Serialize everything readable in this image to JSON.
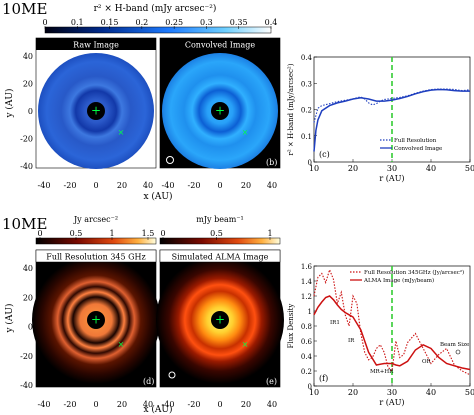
{
  "row1": {
    "system_label": "10ME",
    "colorbar_title": "r² × H-band (mJy arcsec⁻²)",
    "colorbar_ticks": [
      "0",
      "0.1",
      "0.15",
      "0.2",
      "0.25",
      "0.3",
      "0.35",
      "0.4"
    ],
    "panel_a_title": "Raw Image",
    "panel_b_title": "Convolved Image",
    "panel_a_tag": "(a)",
    "panel_b_tag": "(b)",
    "panel_c_tag": "(c)",
    "xlabel": "x (AU)",
    "ylabel": "y (AU)",
    "x_ticks": [
      "-40",
      "-20",
      "0",
      "20",
      "40"
    ],
    "y_ticks": [
      "40",
      "20",
      "0",
      "-20",
      "-40"
    ]
  },
  "row2": {
    "system_label": "10ME",
    "colorbar1_title": "Jy arcsec⁻²",
    "colorbar1_ticks": [
      "0",
      "0.5",
      "1",
      "1.5"
    ],
    "colorbar2_title": "mJy beam⁻¹",
    "colorbar2_ticks": [
      "0",
      "0.5",
      "1"
    ],
    "panel_d_title": "Full Resolution 345 GHz",
    "panel_e_title": "Simulated ALMA Image",
    "panel_d_tag": "(d)",
    "panel_e_tag": "(e)",
    "panel_f_tag": "(f)",
    "xlabel": "x (AU)",
    "ylabel": "y (AU)",
    "x_ticks": [
      "-40",
      "-20",
      "0",
      "20",
      "40"
    ],
    "y_ticks": [
      "40",
      "20",
      "0",
      "-20",
      "-40"
    ]
  },
  "chart_data": [
    {
      "type": "line",
      "panel": "c",
      "xlabel": "r (AU)",
      "ylabel": "r² × H-band (mJy/arcsec²)",
      "xlim": [
        10,
        50
      ],
      "ylim": [
        0,
        0.4
      ],
      "x_ticks": [
        "10",
        "20",
        "30",
        "40",
        "50"
      ],
      "y_ticks": [
        "0",
        "0.1",
        "0.2",
        "0.3",
        "0.4"
      ],
      "vline": 30,
      "legend_position": "bottom-right",
      "series": [
        {
          "name": "Full Resolution",
          "style": "dotted",
          "color": "#1f3fbf",
          "x": [
            10,
            11,
            12,
            14,
            16,
            18,
            20,
            21,
            22,
            23,
            24,
            25,
            26,
            27,
            28,
            29,
            30,
            32,
            34,
            36,
            38,
            40,
            42,
            44,
            46,
            48,
            50
          ],
          "y": [
            0.15,
            0.205,
            0.215,
            0.222,
            0.23,
            0.235,
            0.24,
            0.245,
            0.248,
            0.24,
            0.225,
            0.218,
            0.222,
            0.232,
            0.238,
            0.24,
            0.242,
            0.246,
            0.252,
            0.262,
            0.27,
            0.276,
            0.278,
            0.278,
            0.276,
            0.272,
            0.275
          ]
        },
        {
          "name": "Convolved Image",
          "style": "solid",
          "color": "#1f3fbf",
          "x": [
            10,
            10.5,
            11,
            12,
            14,
            16,
            18,
            20,
            22,
            24,
            26,
            28,
            30,
            32,
            34,
            36,
            38,
            40,
            42,
            44,
            46,
            48,
            50
          ],
          "y": [
            0.04,
            0.12,
            0.16,
            0.195,
            0.215,
            0.225,
            0.232,
            0.24,
            0.245,
            0.24,
            0.232,
            0.232,
            0.236,
            0.242,
            0.25,
            0.26,
            0.268,
            0.274,
            0.276,
            0.275,
            0.272,
            0.27,
            0.27
          ]
        }
      ]
    },
    {
      "type": "line",
      "panel": "f",
      "xlabel": "r (AU)",
      "ylabel": "Flux Density",
      "xlim": [
        10,
        50
      ],
      "ylim": [
        0,
        1.6
      ],
      "x_ticks": [
        "10",
        "20",
        "30",
        "40",
        "50"
      ],
      "y_ticks": [
        "0",
        "0.2",
        "0.4",
        "0.6",
        "0.8",
        "1",
        "1.2",
        "1.4",
        "1.6"
      ],
      "vline": 30,
      "legend_position": "top-right",
      "annotations": [
        "IR1",
        "IR",
        "MR+HR",
        "OR",
        "Beam Size"
      ],
      "series": [
        {
          "name": "Full Resolution 345GHz (Jy/arcsec²)",
          "style": "dotted",
          "color": "#cc1111",
          "x": [
            10,
            11,
            12,
            13,
            14,
            15,
            16,
            17,
            18,
            19,
            20,
            21,
            22,
            23,
            24,
            25,
            26,
            27,
            28,
            29,
            30,
            31,
            32,
            33,
            34,
            36,
            38,
            40,
            42,
            44,
            46,
            48,
            50
          ],
          "y": [
            1.2,
            1.45,
            1.5,
            1.38,
            1.55,
            1.42,
            1.1,
            1.25,
            0.95,
            0.8,
            1.2,
            1.1,
            0.7,
            0.45,
            0.35,
            0.38,
            0.5,
            0.55,
            0.45,
            0.25,
            0.2,
            0.6,
            0.38,
            0.42,
            0.58,
            0.7,
            0.5,
            0.3,
            0.42,
            0.5,
            0.28,
            0.2,
            0.15
          ]
        },
        {
          "name": "ALMA Image (mJy/beam)",
          "style": "solid",
          "color": "#cc1111",
          "x": [
            10,
            11,
            12,
            13,
            14,
            15,
            16,
            17,
            18,
            19,
            20,
            22,
            24,
            26,
            28,
            30,
            31,
            32,
            34,
            36,
            38,
            40,
            42,
            44,
            46,
            48,
            50
          ],
          "y": [
            0.95,
            1.05,
            1.12,
            1.18,
            1.2,
            1.15,
            1.08,
            1.02,
            0.98,
            0.95,
            0.92,
            0.75,
            0.45,
            0.28,
            0.3,
            0.3,
            0.28,
            0.27,
            0.33,
            0.48,
            0.55,
            0.5,
            0.38,
            0.3,
            0.27,
            0.24,
            0.22
          ]
        }
      ]
    }
  ]
}
